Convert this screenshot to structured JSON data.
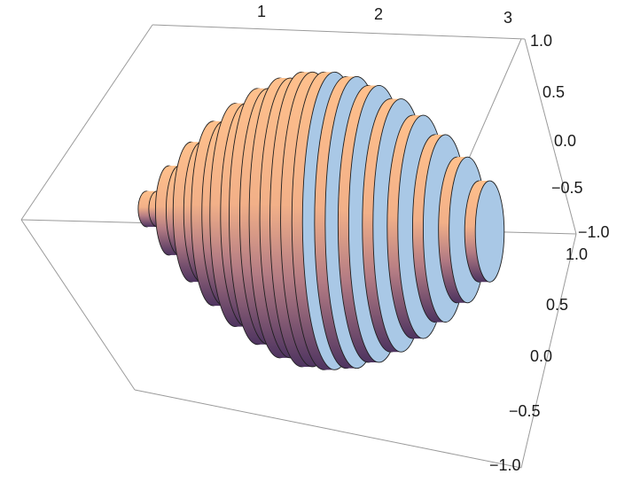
{
  "figure": {
    "type": "3d-stacked-discs",
    "x_axis": {
      "ticks": [
        "1",
        "2",
        "3"
      ]
    },
    "y_axis": {
      "ticks": [
        "1.0",
        "0.5",
        "0.0",
        "−0.5",
        "−1.0"
      ]
    },
    "z_axis": {
      "ticks": [
        "1.0",
        "0.5",
        "0.0",
        "−0.5",
        "−1.0"
      ]
    },
    "colors": {
      "box_edge": "#9a9a9a",
      "disc_face": "#a9c8e6",
      "body_top": "#ffc08c",
      "body_mid": "#d89a86",
      "body_bottom": "#4e3460",
      "outline": "#1f1f1f"
    },
    "discs": [
      {
        "x": 0.1,
        "r": 0.12
      },
      {
        "x": 0.3,
        "r": 0.3
      },
      {
        "x": 0.5,
        "r": 0.47
      },
      {
        "x": 0.7,
        "r": 0.62
      },
      {
        "x": 0.9,
        "r": 0.75
      },
      {
        "x": 1.1,
        "r": 0.86
      },
      {
        "x": 1.3,
        "r": 0.94
      },
      {
        "x": 1.5,
        "r": 0.99
      },
      {
        "x": 1.7,
        "r": 1.0
      },
      {
        "x": 1.9,
        "r": 0.98
      },
      {
        "x": 2.1,
        "r": 0.93
      },
      {
        "x": 2.3,
        "r": 0.85
      },
      {
        "x": 2.5,
        "r": 0.75
      },
      {
        "x": 2.7,
        "r": 0.63
      },
      {
        "x": 2.9,
        "r": 0.49
      },
      {
        "x": 3.1,
        "r": 0.34
      }
    ]
  }
}
